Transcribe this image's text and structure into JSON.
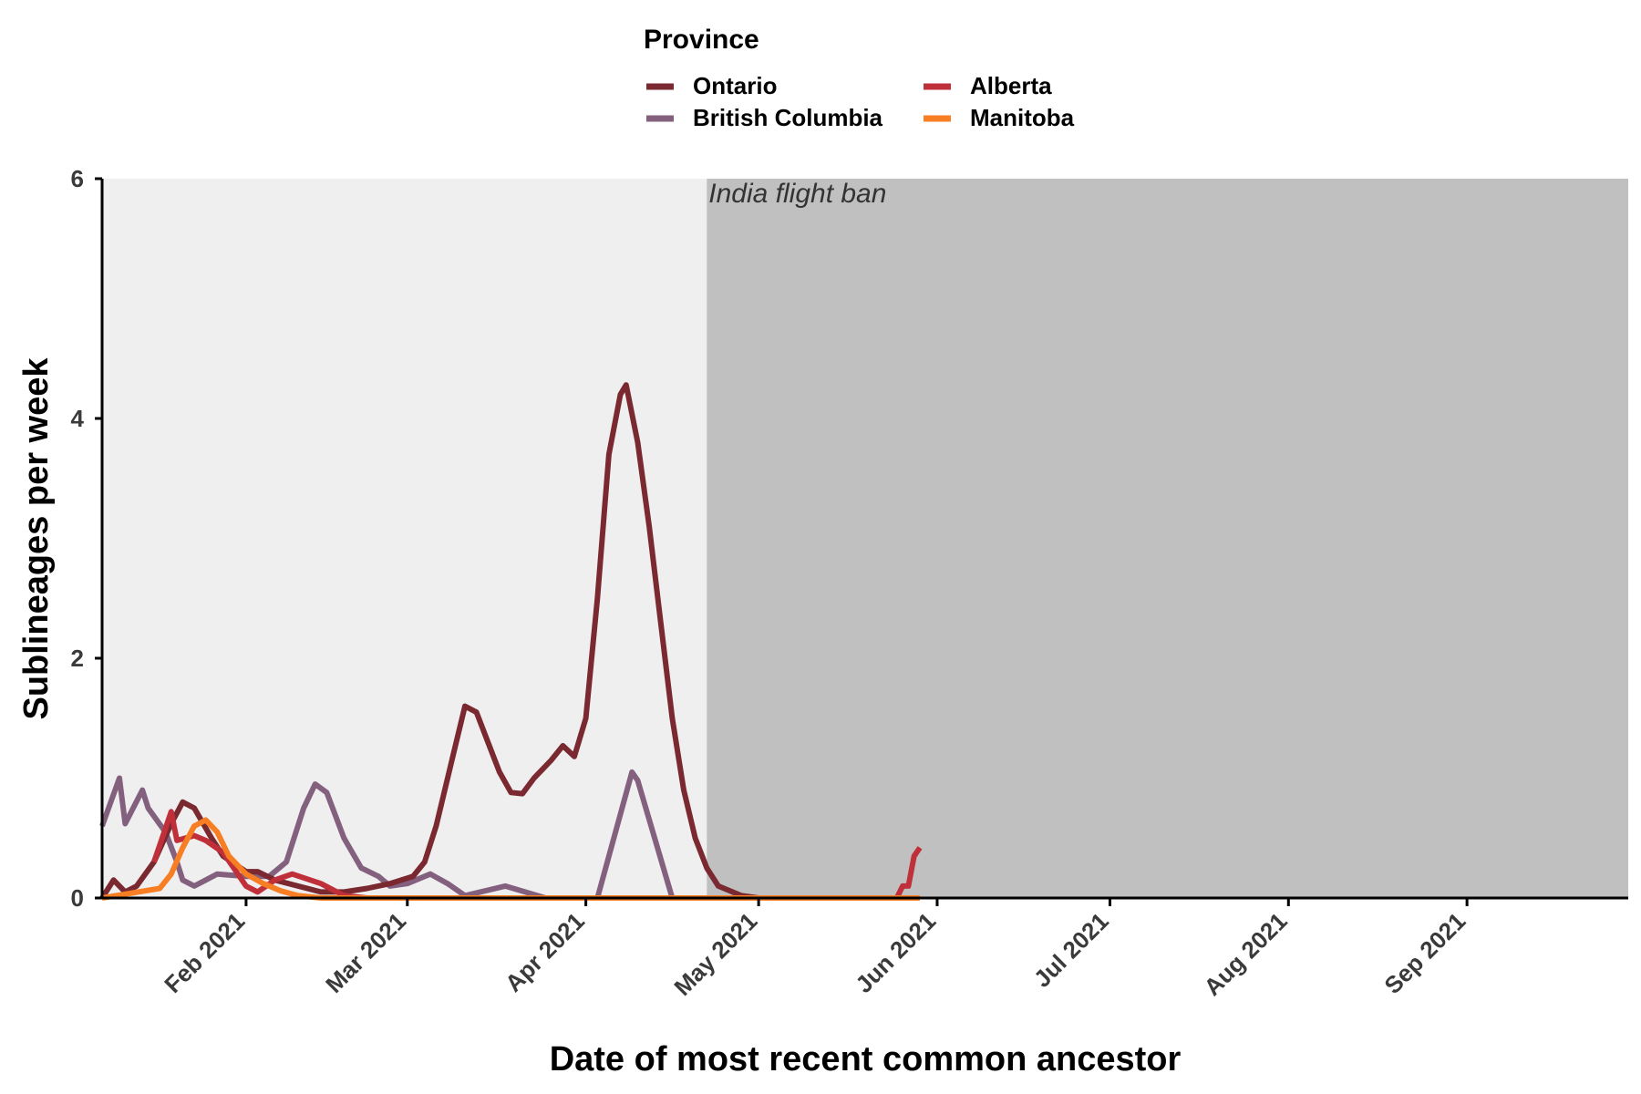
{
  "chart_data": {
    "type": "line",
    "xlabel": "Date of most recent common ancestor",
    "ylabel": "Sublineages per week",
    "legend": {
      "title": "Province",
      "placement": "top",
      "entries": [
        "Ontario",
        "British Columbia",
        "Alberta",
        "Manitoba"
      ]
    },
    "x_ticks": [
      {
        "date": "2021-02-01",
        "label": "Feb 2021"
      },
      {
        "date": "2021-03-01",
        "label": "Mar 2021"
      },
      {
        "date": "2021-04-01",
        "label": "Apr 2021"
      },
      {
        "date": "2021-05-01",
        "label": "May 2021"
      },
      {
        "date": "2021-06-01",
        "label": "Jun 2021"
      },
      {
        "date": "2021-07-01",
        "label": "Jul 2021"
      },
      {
        "date": "2021-08-01",
        "label": "Aug 2021"
      },
      {
        "date": "2021-09-01",
        "label": "Sep 2021"
      }
    ],
    "y_ticks": [
      0,
      2,
      4,
      6
    ],
    "xlim": [
      "2021-01-07",
      "2021-09-29"
    ],
    "ylim": [
      0,
      6
    ],
    "grid": false,
    "shaded_regions": [
      {
        "start": "2021-01-07",
        "end": "2021-04-22",
        "color": "#efefef",
        "label": ""
      },
      {
        "start": "2021-04-22",
        "end": "2021-09-29",
        "color": "#c0c0c0",
        "label": "India flight ban"
      }
    ],
    "series": [
      {
        "name": "British Columbia",
        "color": "#84607f",
        "points": [
          [
            "2021-01-07",
            0.6
          ],
          [
            "2021-01-10",
            1.0
          ],
          [
            "2021-01-11",
            0.62
          ],
          [
            "2021-01-14",
            0.9
          ],
          [
            "2021-01-15",
            0.75
          ],
          [
            "2021-01-18",
            0.55
          ],
          [
            "2021-01-20",
            0.3
          ],
          [
            "2021-01-21",
            0.15
          ],
          [
            "2021-01-23",
            0.1
          ],
          [
            "2021-01-25",
            0.15
          ],
          [
            "2021-01-27",
            0.2
          ],
          [
            "2021-02-01",
            0.18
          ],
          [
            "2021-02-05",
            0.18
          ],
          [
            "2021-02-08",
            0.3
          ],
          [
            "2021-02-11",
            0.75
          ],
          [
            "2021-02-13",
            0.95
          ],
          [
            "2021-02-15",
            0.88
          ],
          [
            "2021-02-18",
            0.5
          ],
          [
            "2021-02-21",
            0.25
          ],
          [
            "2021-02-24",
            0.18
          ],
          [
            "2021-02-26",
            0.1
          ],
          [
            "2021-03-01",
            0.12
          ],
          [
            "2021-03-05",
            0.2
          ],
          [
            "2021-03-08",
            0.12
          ],
          [
            "2021-03-11",
            0.02
          ],
          [
            "2021-03-18",
            0.1
          ],
          [
            "2021-03-25",
            0.0
          ],
          [
            "2021-04-03",
            0.0
          ],
          [
            "2021-04-09",
            1.05
          ],
          [
            "2021-04-10",
            0.98
          ],
          [
            "2021-04-16",
            0.0
          ],
          [
            "2021-04-22",
            0.0
          ],
          [
            "2021-05-28",
            0.0
          ]
        ]
      },
      {
        "name": "Ontario",
        "color": "#7a2930",
        "points": [
          [
            "2021-01-07",
            0.0
          ],
          [
            "2021-01-09",
            0.15
          ],
          [
            "2021-01-11",
            0.05
          ],
          [
            "2021-01-13",
            0.1
          ],
          [
            "2021-01-16",
            0.3
          ],
          [
            "2021-01-19",
            0.62
          ],
          [
            "2021-01-21",
            0.8
          ],
          [
            "2021-01-23",
            0.75
          ],
          [
            "2021-01-26",
            0.5
          ],
          [
            "2021-01-28",
            0.35
          ],
          [
            "2021-02-01",
            0.22
          ],
          [
            "2021-02-03",
            0.22
          ],
          [
            "2021-02-06",
            0.15
          ],
          [
            "2021-02-10",
            0.1
          ],
          [
            "2021-02-14",
            0.05
          ],
          [
            "2021-02-18",
            0.05
          ],
          [
            "2021-02-22",
            0.08
          ],
          [
            "2021-02-26",
            0.12
          ],
          [
            "2021-03-02",
            0.18
          ],
          [
            "2021-03-04",
            0.3
          ],
          [
            "2021-03-06",
            0.6
          ],
          [
            "2021-03-09",
            1.2
          ],
          [
            "2021-03-11",
            1.6
          ],
          [
            "2021-03-13",
            1.55
          ],
          [
            "2021-03-15",
            1.3
          ],
          [
            "2021-03-17",
            1.05
          ],
          [
            "2021-03-19",
            0.88
          ],
          [
            "2021-03-21",
            0.87
          ],
          [
            "2021-03-23",
            1.0
          ],
          [
            "2021-03-26",
            1.15
          ],
          [
            "2021-03-28",
            1.27
          ],
          [
            "2021-03-30",
            1.18
          ],
          [
            "2021-04-01",
            1.5
          ],
          [
            "2021-04-03",
            2.5
          ],
          [
            "2021-04-05",
            3.7
          ],
          [
            "2021-04-07",
            4.2
          ],
          [
            "2021-04-08",
            4.28
          ],
          [
            "2021-04-10",
            3.8
          ],
          [
            "2021-04-12",
            3.1
          ],
          [
            "2021-04-14",
            2.3
          ],
          [
            "2021-04-16",
            1.5
          ],
          [
            "2021-04-18",
            0.9
          ],
          [
            "2021-04-20",
            0.5
          ],
          [
            "2021-04-22",
            0.25
          ],
          [
            "2021-04-24",
            0.1
          ],
          [
            "2021-04-28",
            0.02
          ],
          [
            "2021-05-01",
            0.0
          ],
          [
            "2021-05-28",
            0.0
          ]
        ]
      },
      {
        "name": "Alberta",
        "color": "#c0303a",
        "points": [
          [
            "2021-01-16",
            0.3
          ],
          [
            "2021-01-19",
            0.72
          ],
          [
            "2021-01-20",
            0.48
          ],
          [
            "2021-01-23",
            0.52
          ],
          [
            "2021-01-25",
            0.48
          ],
          [
            "2021-01-28",
            0.38
          ],
          [
            "2021-02-01",
            0.1
          ],
          [
            "2021-02-03",
            0.05
          ],
          [
            "2021-02-06",
            0.15
          ],
          [
            "2021-02-09",
            0.2
          ],
          [
            "2021-02-14",
            0.12
          ],
          [
            "2021-02-18",
            0.02
          ],
          [
            "2021-02-22",
            0.0
          ],
          [
            "2021-05-25",
            0.0
          ],
          [
            "2021-05-26",
            0.1
          ],
          [
            "2021-05-27",
            0.1
          ],
          [
            "2021-05-28",
            0.35
          ],
          [
            "2021-05-29",
            0.42
          ]
        ]
      },
      {
        "name": "Manitoba",
        "color": "#f77e22",
        "points": [
          [
            "2021-01-07",
            0.0
          ],
          [
            "2021-01-17",
            0.08
          ],
          [
            "2021-01-19",
            0.2
          ],
          [
            "2021-01-21",
            0.42
          ],
          [
            "2021-01-23",
            0.6
          ],
          [
            "2021-01-25",
            0.65
          ],
          [
            "2021-01-27",
            0.55
          ],
          [
            "2021-01-29",
            0.35
          ],
          [
            "2021-02-01",
            0.2
          ],
          [
            "2021-02-04",
            0.12
          ],
          [
            "2021-02-07",
            0.06
          ],
          [
            "2021-02-10",
            0.02
          ],
          [
            "2021-02-14",
            0.0
          ],
          [
            "2021-05-29",
            0.0
          ]
        ]
      }
    ]
  }
}
